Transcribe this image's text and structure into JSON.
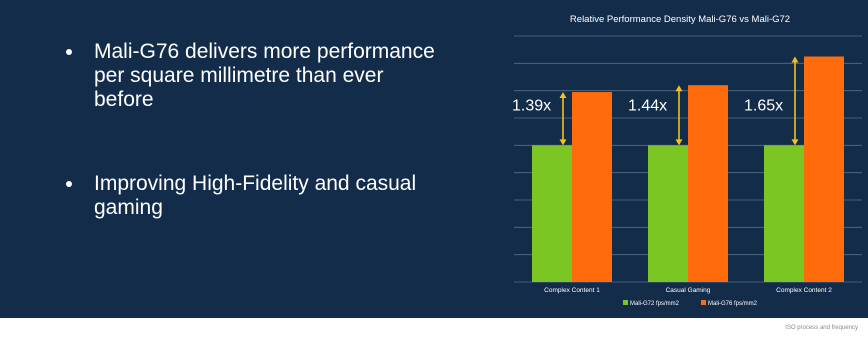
{
  "bullets": [
    "Mali-G76 delivers more performance per square millimetre than ever before",
    "Improving High-Fidelity and casual gaming"
  ],
  "footnote": "ISO process and frequency",
  "colors": {
    "background": "#122c4a",
    "series_g72": "#7cc623",
    "series_g76": "#ff6a0a",
    "arrow": "#f2c21b",
    "grid": "#5a6f88"
  },
  "chart_data": {
    "type": "bar",
    "title": "Relative Performance Density Mali-G76 vs Mali-G72",
    "categories": [
      "Complex Content 1",
      "Casual Gaming",
      "Complex Content 2"
    ],
    "series": [
      {
        "name": "Mali-G72 fps/mm2",
        "values": [
          1.0,
          1.0,
          1.0
        ]
      },
      {
        "name": "Mali-G76 fps/mm2",
        "values": [
          1.39,
          1.44,
          1.65
        ]
      }
    ],
    "annotations": [
      "1.39x",
      "1.44x",
      "1.65x"
    ],
    "ylim": [
      0,
      1.8
    ],
    "grid": true,
    "legend": "bottom"
  }
}
